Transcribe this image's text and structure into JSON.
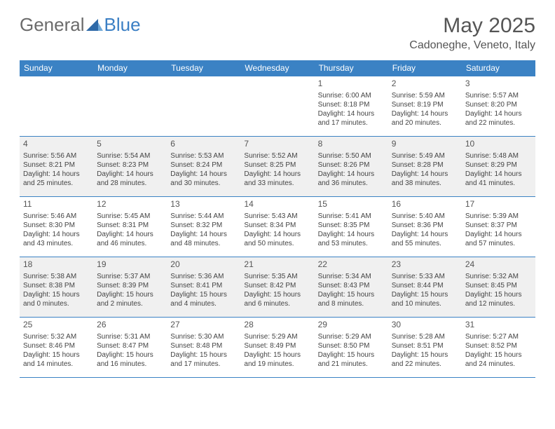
{
  "logo": {
    "part1": "General",
    "part2": "Blue"
  },
  "title": "May 2025",
  "location": "Cadoneghe, Veneto, Italy",
  "colors": {
    "header_bg": "#3b82c4",
    "border": "#3b82c4",
    "alt_row": "#f0f0f0",
    "text": "#444444",
    "logo_gray": "#6b6b6b",
    "logo_blue": "#3b7fc4"
  },
  "days_of_week": [
    "Sunday",
    "Monday",
    "Tuesday",
    "Wednesday",
    "Thursday",
    "Friday",
    "Saturday"
  ],
  "weeks": [
    [
      null,
      null,
      null,
      null,
      {
        "n": "1",
        "sr": "Sunrise: 6:00 AM",
        "ss": "Sunset: 8:18 PM",
        "d1": "Daylight: 14 hours",
        "d2": "and 17 minutes."
      },
      {
        "n": "2",
        "sr": "Sunrise: 5:59 AM",
        "ss": "Sunset: 8:19 PM",
        "d1": "Daylight: 14 hours",
        "d2": "and 20 minutes."
      },
      {
        "n": "3",
        "sr": "Sunrise: 5:57 AM",
        "ss": "Sunset: 8:20 PM",
        "d1": "Daylight: 14 hours",
        "d2": "and 22 minutes."
      }
    ],
    [
      {
        "n": "4",
        "sr": "Sunrise: 5:56 AM",
        "ss": "Sunset: 8:21 PM",
        "d1": "Daylight: 14 hours",
        "d2": "and 25 minutes."
      },
      {
        "n": "5",
        "sr": "Sunrise: 5:54 AM",
        "ss": "Sunset: 8:23 PM",
        "d1": "Daylight: 14 hours",
        "d2": "and 28 minutes."
      },
      {
        "n": "6",
        "sr": "Sunrise: 5:53 AM",
        "ss": "Sunset: 8:24 PM",
        "d1": "Daylight: 14 hours",
        "d2": "and 30 minutes."
      },
      {
        "n": "7",
        "sr": "Sunrise: 5:52 AM",
        "ss": "Sunset: 8:25 PM",
        "d1": "Daylight: 14 hours",
        "d2": "and 33 minutes."
      },
      {
        "n": "8",
        "sr": "Sunrise: 5:50 AM",
        "ss": "Sunset: 8:26 PM",
        "d1": "Daylight: 14 hours",
        "d2": "and 36 minutes."
      },
      {
        "n": "9",
        "sr": "Sunrise: 5:49 AM",
        "ss": "Sunset: 8:28 PM",
        "d1": "Daylight: 14 hours",
        "d2": "and 38 minutes."
      },
      {
        "n": "10",
        "sr": "Sunrise: 5:48 AM",
        "ss": "Sunset: 8:29 PM",
        "d1": "Daylight: 14 hours",
        "d2": "and 41 minutes."
      }
    ],
    [
      {
        "n": "11",
        "sr": "Sunrise: 5:46 AM",
        "ss": "Sunset: 8:30 PM",
        "d1": "Daylight: 14 hours",
        "d2": "and 43 minutes."
      },
      {
        "n": "12",
        "sr": "Sunrise: 5:45 AM",
        "ss": "Sunset: 8:31 PM",
        "d1": "Daylight: 14 hours",
        "d2": "and 46 minutes."
      },
      {
        "n": "13",
        "sr": "Sunrise: 5:44 AM",
        "ss": "Sunset: 8:32 PM",
        "d1": "Daylight: 14 hours",
        "d2": "and 48 minutes."
      },
      {
        "n": "14",
        "sr": "Sunrise: 5:43 AM",
        "ss": "Sunset: 8:34 PM",
        "d1": "Daylight: 14 hours",
        "d2": "and 50 minutes."
      },
      {
        "n": "15",
        "sr": "Sunrise: 5:41 AM",
        "ss": "Sunset: 8:35 PM",
        "d1": "Daylight: 14 hours",
        "d2": "and 53 minutes."
      },
      {
        "n": "16",
        "sr": "Sunrise: 5:40 AM",
        "ss": "Sunset: 8:36 PM",
        "d1": "Daylight: 14 hours",
        "d2": "and 55 minutes."
      },
      {
        "n": "17",
        "sr": "Sunrise: 5:39 AM",
        "ss": "Sunset: 8:37 PM",
        "d1": "Daylight: 14 hours",
        "d2": "and 57 minutes."
      }
    ],
    [
      {
        "n": "18",
        "sr": "Sunrise: 5:38 AM",
        "ss": "Sunset: 8:38 PM",
        "d1": "Daylight: 15 hours",
        "d2": "and 0 minutes."
      },
      {
        "n": "19",
        "sr": "Sunrise: 5:37 AM",
        "ss": "Sunset: 8:39 PM",
        "d1": "Daylight: 15 hours",
        "d2": "and 2 minutes."
      },
      {
        "n": "20",
        "sr": "Sunrise: 5:36 AM",
        "ss": "Sunset: 8:41 PM",
        "d1": "Daylight: 15 hours",
        "d2": "and 4 minutes."
      },
      {
        "n": "21",
        "sr": "Sunrise: 5:35 AM",
        "ss": "Sunset: 8:42 PM",
        "d1": "Daylight: 15 hours",
        "d2": "and 6 minutes."
      },
      {
        "n": "22",
        "sr": "Sunrise: 5:34 AM",
        "ss": "Sunset: 8:43 PM",
        "d1": "Daylight: 15 hours",
        "d2": "and 8 minutes."
      },
      {
        "n": "23",
        "sr": "Sunrise: 5:33 AM",
        "ss": "Sunset: 8:44 PM",
        "d1": "Daylight: 15 hours",
        "d2": "and 10 minutes."
      },
      {
        "n": "24",
        "sr": "Sunrise: 5:32 AM",
        "ss": "Sunset: 8:45 PM",
        "d1": "Daylight: 15 hours",
        "d2": "and 12 minutes."
      }
    ],
    [
      {
        "n": "25",
        "sr": "Sunrise: 5:32 AM",
        "ss": "Sunset: 8:46 PM",
        "d1": "Daylight: 15 hours",
        "d2": "and 14 minutes."
      },
      {
        "n": "26",
        "sr": "Sunrise: 5:31 AM",
        "ss": "Sunset: 8:47 PM",
        "d1": "Daylight: 15 hours",
        "d2": "and 16 minutes."
      },
      {
        "n": "27",
        "sr": "Sunrise: 5:30 AM",
        "ss": "Sunset: 8:48 PM",
        "d1": "Daylight: 15 hours",
        "d2": "and 17 minutes."
      },
      {
        "n": "28",
        "sr": "Sunrise: 5:29 AM",
        "ss": "Sunset: 8:49 PM",
        "d1": "Daylight: 15 hours",
        "d2": "and 19 minutes."
      },
      {
        "n": "29",
        "sr": "Sunrise: 5:29 AM",
        "ss": "Sunset: 8:50 PM",
        "d1": "Daylight: 15 hours",
        "d2": "and 21 minutes."
      },
      {
        "n": "30",
        "sr": "Sunrise: 5:28 AM",
        "ss": "Sunset: 8:51 PM",
        "d1": "Daylight: 15 hours",
        "d2": "and 22 minutes."
      },
      {
        "n": "31",
        "sr": "Sunrise: 5:27 AM",
        "ss": "Sunset: 8:52 PM",
        "d1": "Daylight: 15 hours",
        "d2": "and 24 minutes."
      }
    ]
  ]
}
